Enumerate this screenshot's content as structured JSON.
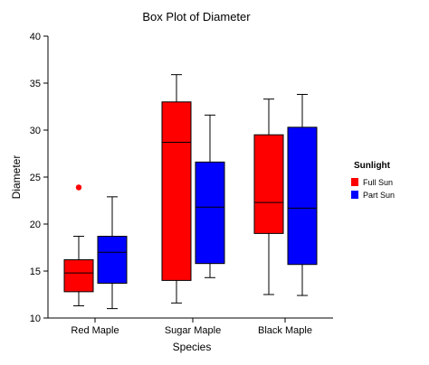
{
  "chart_data": {
    "type": "box",
    "title": "Box Plot of Diameter",
    "xlabel": "Species",
    "ylabel": "Diameter",
    "ylim": [
      10,
      40
    ],
    "yticks": [
      10,
      15,
      20,
      25,
      30,
      35,
      40
    ],
    "categories": [
      "Red Maple",
      "Sugar Maple",
      "Black Maple"
    ],
    "legend": {
      "title": "Sunlight",
      "placement": "right",
      "entries": [
        {
          "label": "Full Sun",
          "color": "#ff0000"
        },
        {
          "label": "Part Sun",
          "color": "#0000ff"
        }
      ]
    },
    "series": [
      {
        "name": "Full Sun",
        "color": "#ff0000",
        "boxes": [
          {
            "category": "Red Maple",
            "whisker_low": 11.3,
            "q1": 12.8,
            "median": 14.8,
            "q3": 16.2,
            "whisker_high": 18.7,
            "outliers": [
              23.9
            ]
          },
          {
            "category": "Sugar Maple",
            "whisker_low": 11.6,
            "q1": 14.0,
            "median": 28.7,
            "q3": 33.0,
            "whisker_high": 35.9,
            "outliers": []
          },
          {
            "category": "Black Maple",
            "whisker_low": 12.5,
            "q1": 19.0,
            "median": 22.3,
            "q3": 29.5,
            "whisker_high": 33.3,
            "outliers": []
          }
        ]
      },
      {
        "name": "Part Sun",
        "color": "#0000ff",
        "boxes": [
          {
            "category": "Red Maple",
            "whisker_low": 11.0,
            "q1": 13.7,
            "median": 17.0,
            "q3": 18.7,
            "whisker_high": 22.9,
            "outliers": []
          },
          {
            "category": "Sugar Maple",
            "whisker_low": 14.3,
            "q1": 15.8,
            "median": 21.8,
            "q3": 26.6,
            "whisker_high": 31.6,
            "outliers": []
          },
          {
            "category": "Black Maple",
            "whisker_low": 12.4,
            "q1": 15.7,
            "median": 21.7,
            "q3": 30.3,
            "whisker_high": 33.8,
            "outliers": []
          }
        ]
      }
    ]
  }
}
